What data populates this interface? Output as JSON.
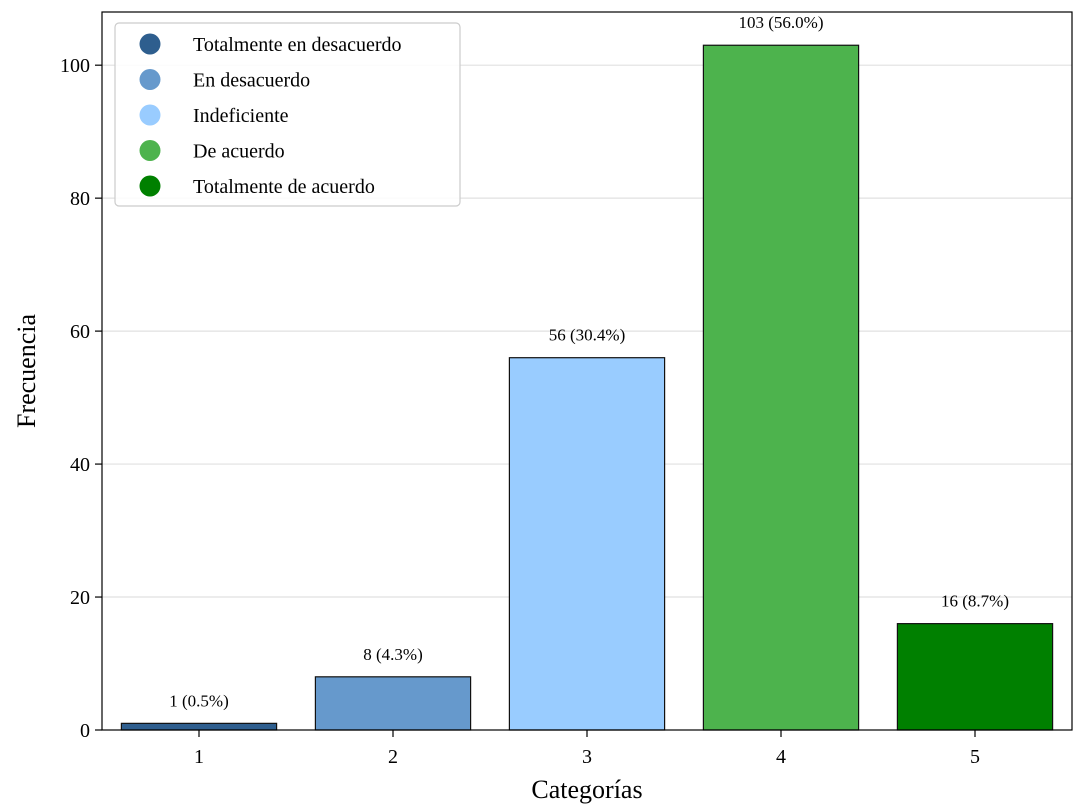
{
  "chart_data": {
    "type": "bar",
    "categories": [
      "1",
      "2",
      "3",
      "4",
      "5"
    ],
    "values": [
      1,
      8,
      56,
      103,
      16
    ],
    "data_labels": [
      "1 (0.5%)",
      "8 (4.3%)",
      "56 (30.4%)",
      "103 (56.0%)",
      "16 (8.7%)"
    ],
    "colors": [
      "#2e5e8e",
      "#6699cc",
      "#99ccff",
      "#4db34d",
      "#008000"
    ],
    "xlabel": "Categorías",
    "ylabel": "Frecuencia",
    "ylim": [
      0,
      108
    ],
    "yticks": [
      0,
      20,
      40,
      60,
      80,
      100
    ],
    "grid": "horizontal",
    "legend": {
      "placement": "top-left",
      "entries": [
        {
          "label": "Totalmente en desacuerdo",
          "color": "#2e5e8e"
        },
        {
          "label": "En desacuerdo",
          "color": "#6699cc"
        },
        {
          "label": "Indeficiente",
          "color": "#99ccff"
        },
        {
          "label": "De acuerdo",
          "color": "#4db34d"
        },
        {
          "label": "Totalmente de acuerdo",
          "color": "#008000"
        }
      ]
    }
  }
}
